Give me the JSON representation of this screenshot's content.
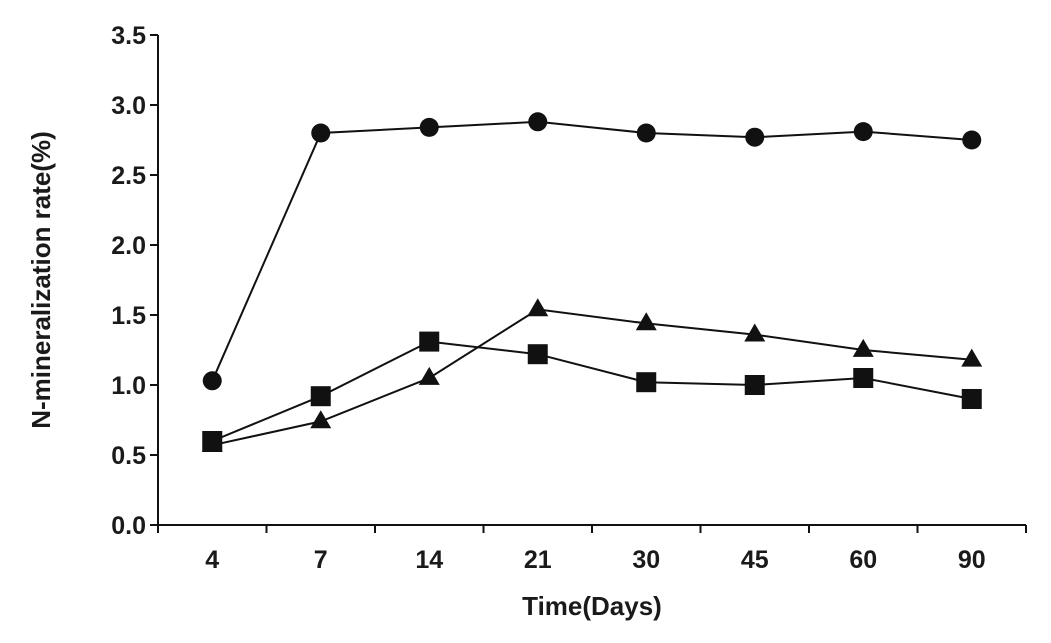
{
  "chart_data": {
    "type": "line",
    "title": "",
    "xlabel": "Time(Days)",
    "ylabel": "N-mineralization rate(%)",
    "categories": [
      "4",
      "7",
      "14",
      "21",
      "30",
      "45",
      "60",
      "90"
    ],
    "ylim": [
      0,
      3.5
    ],
    "yticks": [
      "0.0",
      "0.5",
      "1.0",
      "1.5",
      "2.0",
      "2.5",
      "3.0",
      "3.5"
    ],
    "grid": false,
    "legend": "none",
    "series": [
      {
        "marker": "circle",
        "values": [
          1.03,
          2.8,
          2.84,
          2.88,
          2.8,
          2.77,
          2.81,
          2.75
        ]
      },
      {
        "marker": "square",
        "values": [
          0.6,
          0.92,
          1.31,
          1.22,
          1.02,
          1.0,
          1.05,
          0.9
        ]
      },
      {
        "marker": "triangle",
        "values": [
          0.57,
          0.74,
          1.05,
          1.54,
          1.44,
          1.36,
          1.25,
          1.18
        ]
      }
    ],
    "colors": {
      "line": "#111111",
      "marker": "#111111"
    }
  }
}
